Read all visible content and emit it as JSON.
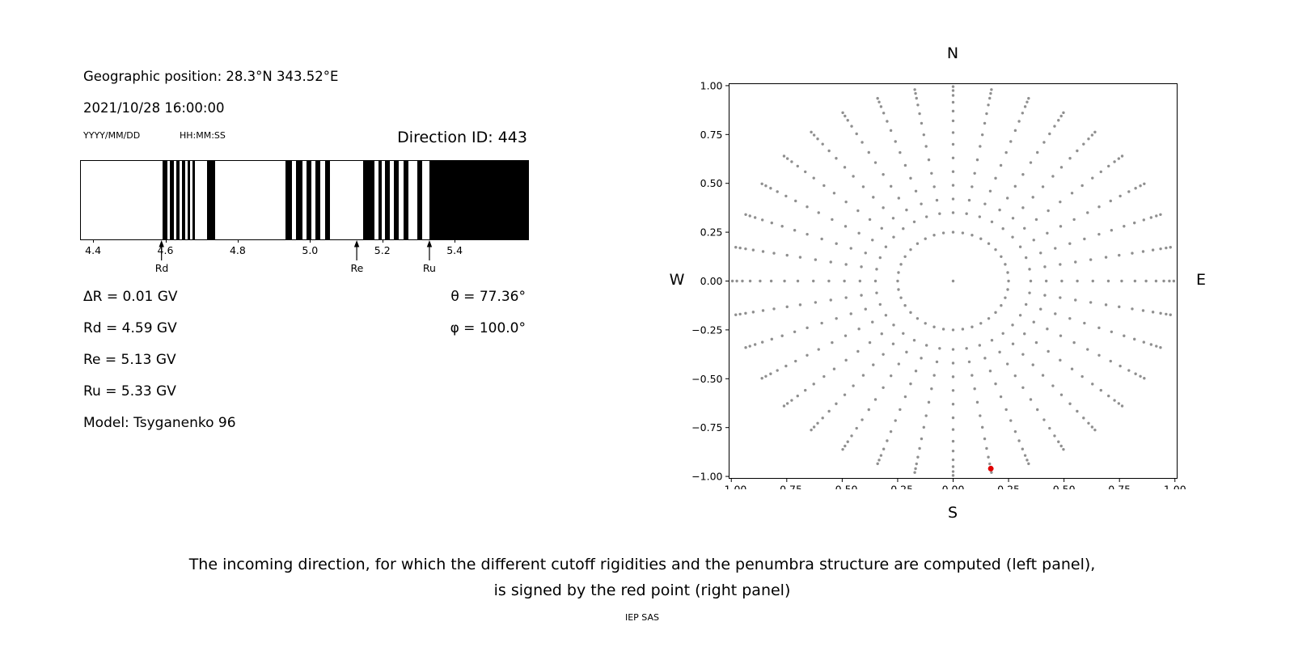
{
  "left_panel": {
    "geo_position": "Geographic position: 28.3°N 343.52°E",
    "datetime": "2021/10/28 16:00:00",
    "date_format": "YYYY/MM/DD",
    "time_format": "HH:MM:SS",
    "direction_id": "Direction ID: 443",
    "params_left": [
      "ΔR = 0.01 GV",
      "Rd = 4.59 GV",
      "Re = 5.13 GV",
      "Ru = 5.33 GV",
      "Model: Tsyganenko 96"
    ],
    "params_right": [
      "θ = 77.36°",
      "φ = 100.0°"
    ]
  },
  "right_panel": {
    "compass": {
      "north": "N",
      "south": "S",
      "east": "E",
      "west": "W"
    }
  },
  "caption": {
    "line1": "The incoming direction, for which the different cutoff rigidities and the penumbra structure are computed (left panel),",
    "line2": "is signed by the red point (right panel)",
    "credit": "IEP SAS"
  },
  "chart_data": [
    {
      "type": "bar",
      "title": "Direction ID: 443",
      "description": "Penumbra structure: black bands mark forbidden rigidity intervals (GV)",
      "xlim": [
        4.364,
        5.601
      ],
      "xticks": [
        4.4,
        4.6,
        4.8,
        5.0,
        5.2,
        5.4
      ],
      "xtick_labels": [
        "4.4",
        "4.6",
        "4.8",
        "5.0",
        "5.2",
        "5.4"
      ],
      "band_color": "#000000",
      "bands_gv": [
        [
          4.59,
          4.604
        ],
        [
          4.61,
          4.622
        ],
        [
          4.628,
          4.638
        ],
        [
          4.644,
          4.653
        ],
        [
          4.659,
          4.667
        ],
        [
          4.673,
          4.68
        ],
        [
          4.712,
          4.735
        ],
        [
          4.93,
          4.948
        ],
        [
          4.96,
          4.976
        ],
        [
          4.987,
          5.001
        ],
        [
          5.013,
          5.027
        ],
        [
          5.039,
          5.053
        ],
        [
          5.145,
          5.176
        ],
        [
          5.187,
          5.196
        ],
        [
          5.205,
          5.219
        ],
        [
          5.23,
          5.243
        ],
        [
          5.257,
          5.27
        ],
        [
          5.295,
          5.308
        ],
        [
          5.328,
          5.601
        ]
      ],
      "markers": [
        {
          "label": "Rd",
          "x": 4.59
        },
        {
          "label": "Re",
          "x": 5.13
        },
        {
          "label": "Ru",
          "x": 5.33
        }
      ]
    },
    {
      "type": "scatter",
      "description": "Sampled incoming directions on sky map; red point is direction 443",
      "xlim": [
        -1.01,
        1.01
      ],
      "ylim": [
        -1.01,
        1.01
      ],
      "tick_values": [
        -1.0,
        -0.75,
        -0.5,
        -0.25,
        0.0,
        0.25,
        0.5,
        0.75,
        1.0
      ],
      "tick_labels": [
        "−1.00",
        "−0.75",
        "−0.50",
        "−0.25",
        "0.00",
        "0.25",
        "0.50",
        "0.75",
        "1.00"
      ],
      "dot_color": "#8f8f8f",
      "pattern": {
        "azimuth_step_deg": 10,
        "ring_radius": 0.25,
        "spoke_radii": [
          0.35,
          0.42,
          0.49,
          0.56,
          0.63,
          0.7,
          0.76,
          0.82,
          0.87,
          0.915,
          0.95,
          0.975,
          0.995
        ],
        "center_dot": true
      },
      "red_point": {
        "x": 0.17,
        "y": -0.96,
        "color": "#e00000"
      }
    }
  ]
}
